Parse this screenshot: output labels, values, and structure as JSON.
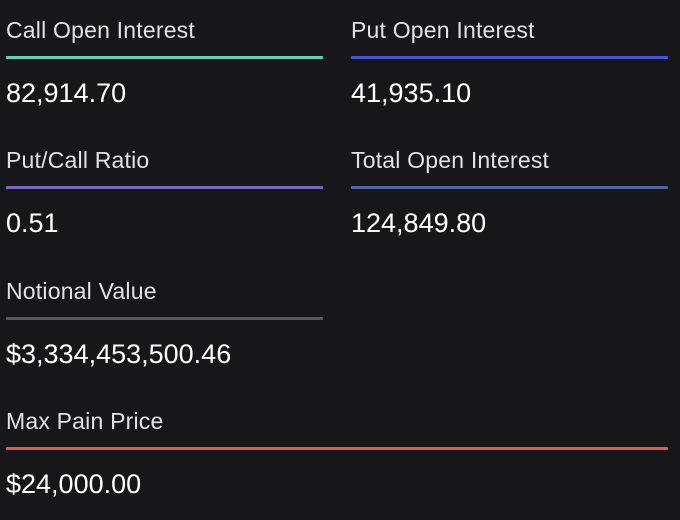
{
  "stats": {
    "call_open_interest": {
      "label": "Call Open Interest",
      "value": "82,914.70",
      "color": "#5fd3b3"
    },
    "put_open_interest": {
      "label": "Put Open Interest",
      "value": "41,935.10",
      "color": "#4b55d6"
    },
    "put_call_ratio": {
      "label": "Put/Call Ratio",
      "value": "0.51",
      "color": "#7a63c4"
    },
    "total_open_interest": {
      "label": "Total Open Interest",
      "value": "124,849.80",
      "color": "#4d66a3"
    },
    "notional_value": {
      "label": "Notional Value",
      "value": "$3,334,453,500.46",
      "color": "#525a66"
    },
    "max_pain_price": {
      "label": "Max Pain Price",
      "value": "$24,000.00",
      "color": "#dc5a52"
    }
  }
}
